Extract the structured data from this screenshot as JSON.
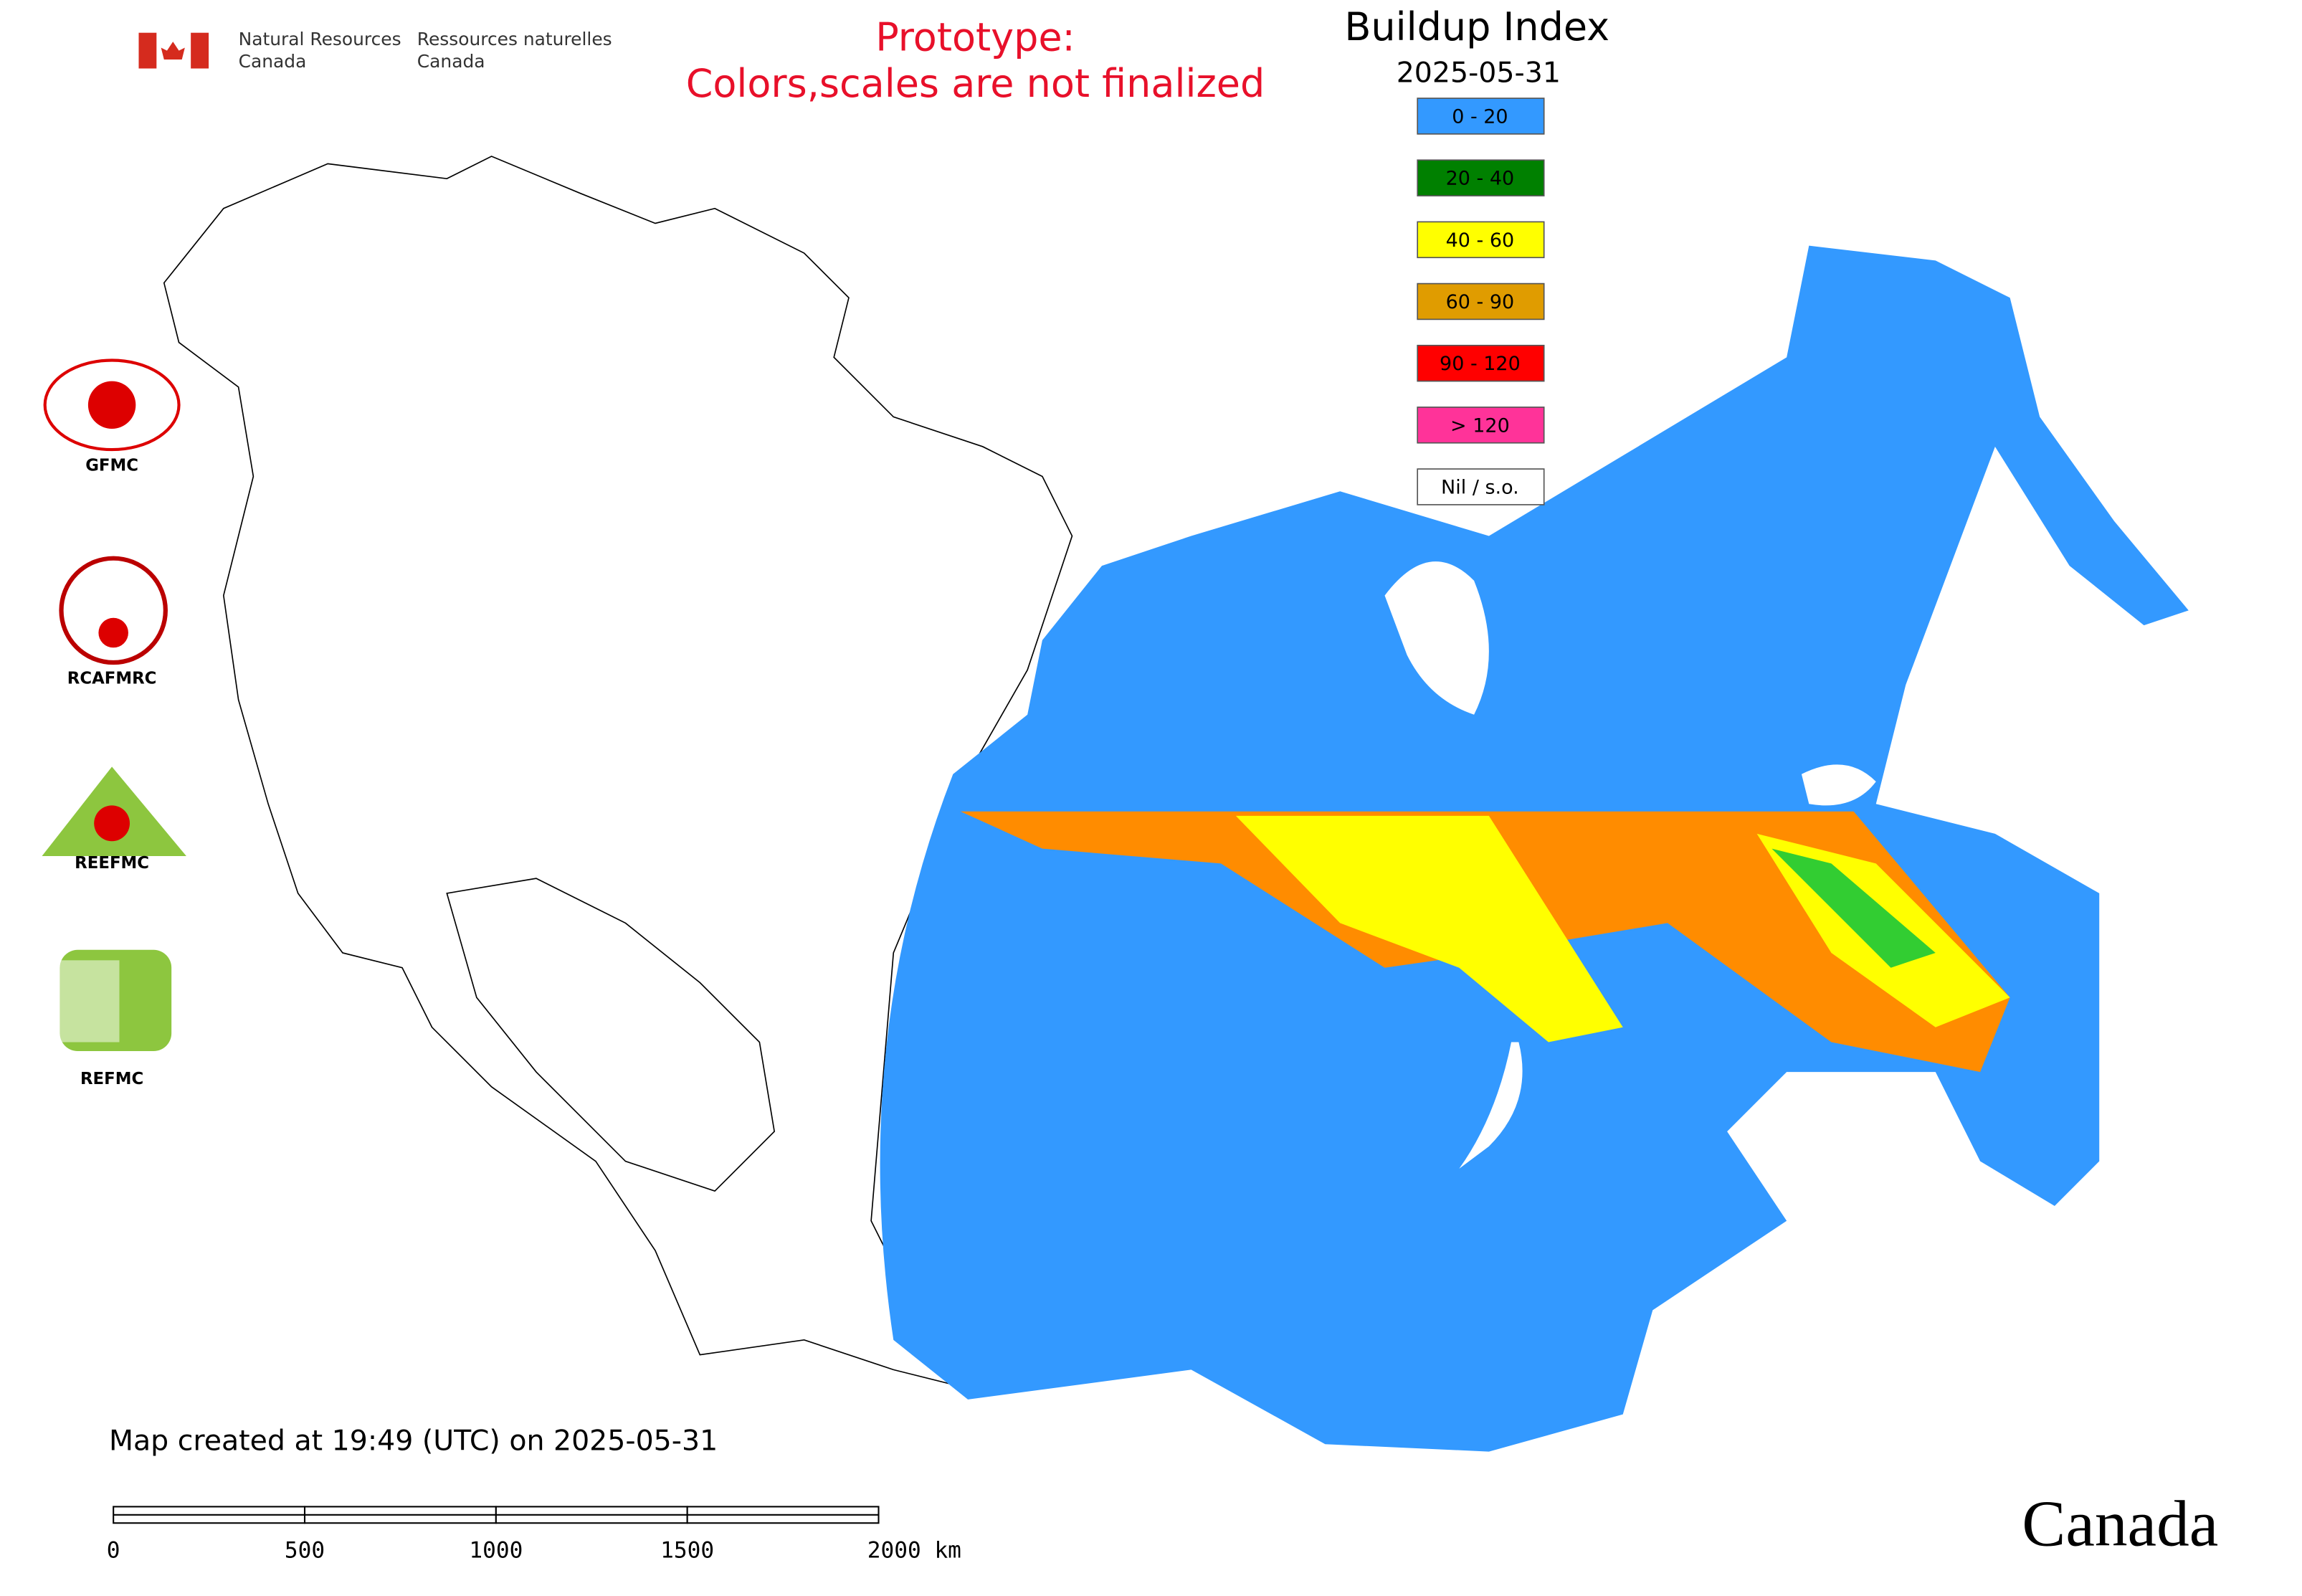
{
  "header": {
    "org_en_line1": "Natural Resources",
    "org_en_line2": "Canada",
    "org_fr_line1": "Ressources naturelles",
    "org_fr_line2": "Canada",
    "notice_line1": "Prototype:",
    "notice_line2": "Colors,scales are not finalized"
  },
  "legend": {
    "title": "Buildup Index",
    "date": "2025-05-31",
    "items": [
      {
        "label": "0 - 20",
        "color": "#3399ff"
      },
      {
        "label": "20 - 40",
        "color": "#008000"
      },
      {
        "label": "40 - 60",
        "color": "#ffff00"
      },
      {
        "label": "60 - 90",
        "color": "#e09c00"
      },
      {
        "label": "90 - 120",
        "color": "#ff0000"
      },
      {
        "label": "> 120",
        "color": "#ff3399"
      },
      {
        "label": "Nil / s.o.",
        "color": "#ffffff"
      }
    ]
  },
  "logos": [
    "GFMC",
    "RCAFMRC",
    "REEFMC",
    "REFMC"
  ],
  "footer": {
    "created": "Map created at 19:49 (UTC) on 2025-05-31",
    "scale_ticks": [
      "0",
      "500",
      "1000",
      "1500",
      "2000 km"
    ]
  },
  "wordmark": "Canada"
}
